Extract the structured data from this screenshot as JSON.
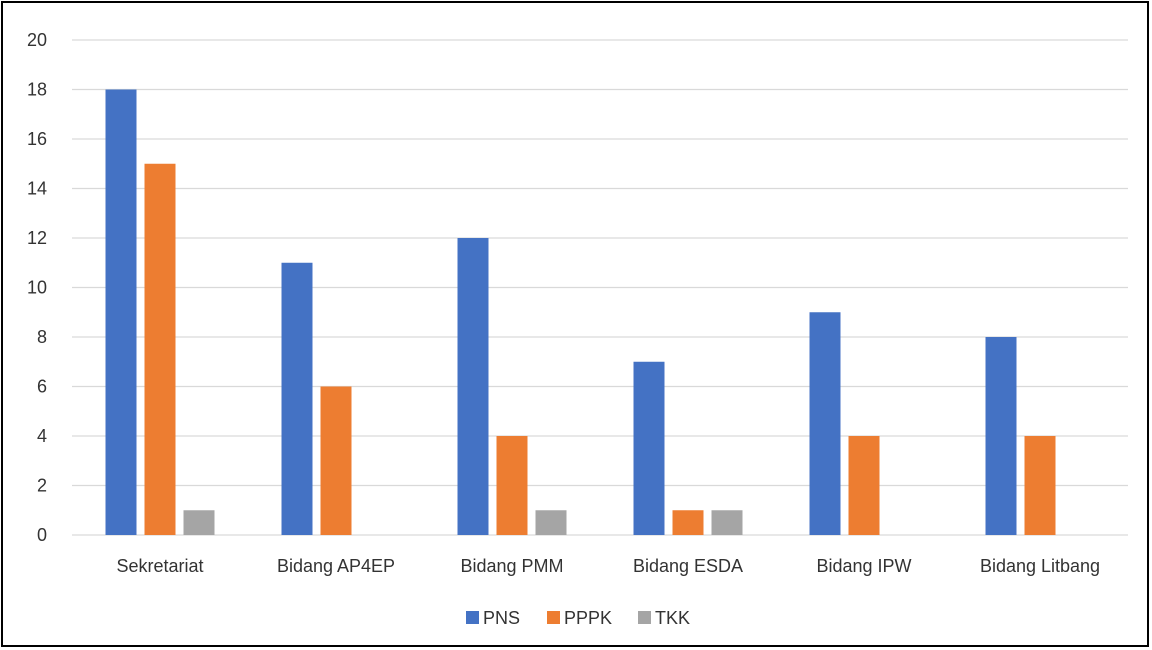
{
  "chart_data": {
    "type": "bar",
    "title": "",
    "xlabel": "",
    "ylabel": "",
    "categories": [
      "Sekretariat",
      "Bidang AP4EP",
      "Bidang PMM",
      "Bidang ESDA",
      "Bidang IPW",
      "Bidang Litbang"
    ],
    "series": [
      {
        "name": "PNS",
        "color": "#4472C4",
        "values": [
          18,
          11,
          12,
          7,
          9,
          8
        ]
      },
      {
        "name": "PPPK",
        "color": "#ED7D31",
        "values": [
          15,
          6,
          4,
          1,
          4,
          4
        ]
      },
      {
        "name": "TKK",
        "color": "#A5A5A5",
        "values": [
          1,
          0,
          1,
          1,
          0,
          0
        ]
      }
    ],
    "ylim": [
      0,
      20
    ],
    "yticks": [
      0,
      2,
      4,
      6,
      8,
      10,
      12,
      14,
      16,
      18,
      20
    ],
    "grid": true,
    "legend": "bottom"
  }
}
